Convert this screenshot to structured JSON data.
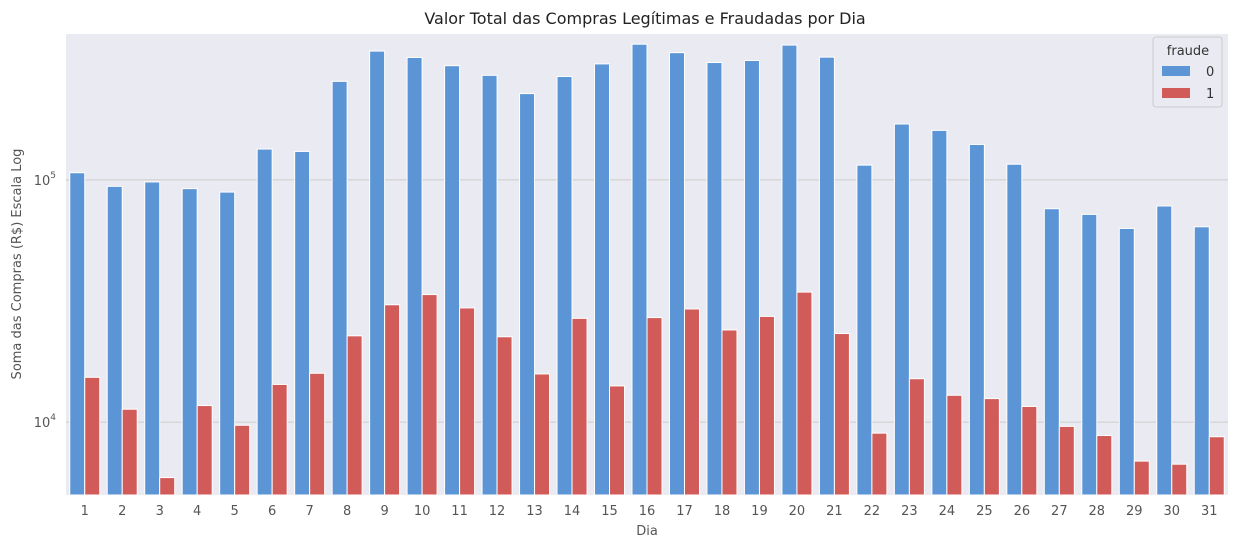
{
  "chart_data": {
    "type": "bar",
    "title": "Valor Total das Compras Legítimas e Fraudadas por Dia",
    "xlabel": "Dia",
    "ylabel": "Soma das Compras (R$) Escala Log",
    "yscale": "log",
    "ylim": [
      5000,
      400000
    ],
    "y_ticks": [
      {
        "base": "10",
        "exp": "4",
        "value": 10000
      },
      {
        "base": "10",
        "exp": "5",
        "value": 100000
      }
    ],
    "grid": true,
    "legend": {
      "title": "fraude",
      "placement": "top-right"
    },
    "categories": [
      "1",
      "2",
      "3",
      "4",
      "5",
      "6",
      "7",
      "8",
      "9",
      "10",
      "11",
      "12",
      "13",
      "14",
      "15",
      "16",
      "17",
      "18",
      "19",
      "20",
      "21",
      "22",
      "23",
      "24",
      "25",
      "26",
      "27",
      "28",
      "29",
      "30",
      "31"
    ],
    "series": [
      {
        "name": "0",
        "color": "#5b95d6",
        "values": [
          107000,
          94000,
          98000,
          92000,
          89000,
          134000,
          131000,
          255000,
          340000,
          320000,
          296000,
          270000,
          227000,
          267000,
          301000,
          363000,
          335000,
          305000,
          311000,
          360000,
          321000,
          115000,
          170000,
          160000,
          140000,
          116000,
          76000,
          72000,
          63000,
          78000,
          64000
        ]
      },
      {
        "name": "1",
        "color": "#d05b58",
        "values": [
          15300,
          11300,
          5900,
          11700,
          9700,
          14300,
          15900,
          22700,
          30500,
          33600,
          29600,
          22500,
          15800,
          26800,
          14100,
          27000,
          29300,
          24000,
          27300,
          34400,
          23200,
          9000,
          15100,
          12900,
          12500,
          11600,
          9600,
          8800,
          6900,
          6700,
          8700
        ]
      }
    ]
  }
}
